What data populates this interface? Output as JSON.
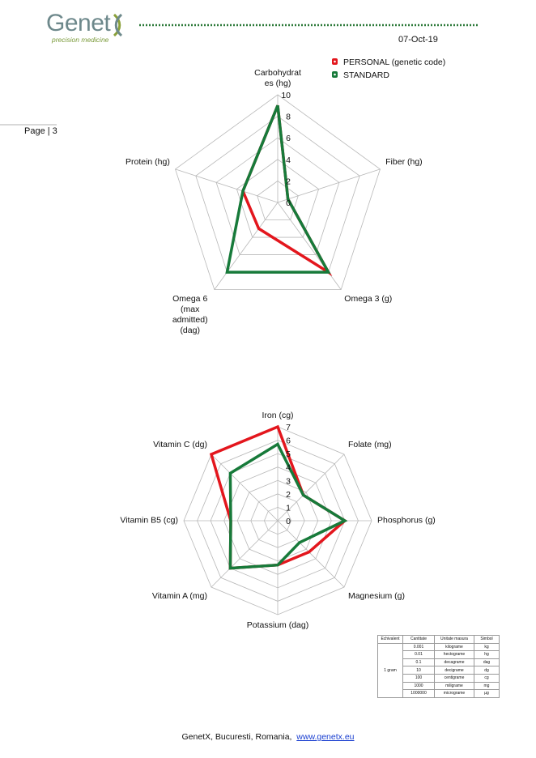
{
  "header": {
    "logo": "Genet",
    "tagline": "precision medicine",
    "date": "07-Oct-19",
    "page": "Page | 3"
  },
  "chart_data": [
    {
      "type": "radar",
      "categories": [
        "Carbohydrates (hg)",
        "Fiber (hg)",
        "Omega 3 (g)",
        "Omega 6 (max admitted) (dag)",
        "Protein (hg)"
      ],
      "series": [
        {
          "name": "PERSONAL (genetic code)",
          "color": "#e3161d",
          "values": [
            9,
            1,
            8,
            3,
            3.4
          ]
        },
        {
          "name": "STANDARD",
          "color": "#177a3a",
          "values": [
            9,
            1,
            8,
            8,
            3.4
          ]
        }
      ],
      "rlim": [
        0,
        10
      ],
      "rticks": [
        0,
        2,
        4,
        6,
        8,
        10
      ],
      "legend": "top-right"
    },
    {
      "type": "radar",
      "categories": [
        "Iron (cg)",
        "Folate (mg)",
        "Phosphorus (g)",
        "Magnesium (g)",
        "Potassium (dag)",
        "Vitamin A (mg)",
        "Vitamin B5 (cg)",
        "Vitamin C (dg)"
      ],
      "series": [
        {
          "color": "#e3161d",
          "values": [
            7,
            2.7,
            5,
            3.3,
            3.3,
            5,
            3.5,
            7
          ]
        },
        {
          "color": "#177a3a",
          "values": [
            5.7,
            2.7,
            5,
            2.3,
            3.3,
            5,
            3.5,
            5
          ]
        }
      ],
      "rlim": [
        0,
        7
      ],
      "rticks": [
        0,
        1,
        2,
        3,
        4,
        5,
        6,
        7
      ]
    }
  ],
  "table": {
    "columns": [
      "Echivalent",
      "Cantitate",
      "Unitate masura",
      "Simbol"
    ],
    "group": "1 gram",
    "rows": [
      [
        "0.001",
        "kilograme",
        "kg"
      ],
      [
        "0.01",
        "hectograme",
        "hg"
      ],
      [
        "0.1",
        "decagrame",
        "dag"
      ],
      [
        "10",
        "decigrame",
        "dg"
      ],
      [
        "100",
        "centigrame",
        "cg"
      ],
      [
        "1000",
        "miligrame",
        "mg"
      ],
      [
        "1000000",
        "micrograme",
        "µg"
      ]
    ]
  },
  "footer": {
    "text": "GenetX, Bucuresti, Romania,",
    "link": "www.genetx.eu"
  }
}
